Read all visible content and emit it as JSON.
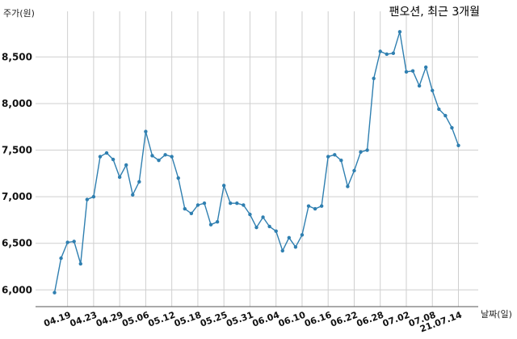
{
  "chart_data": {
    "type": "line",
    "title": "팬오션, 최근 3개월",
    "ylabel": "주가(원)",
    "xlabel": "날짜(일)",
    "ylim": [
      5820,
      8990
    ],
    "yticks": [
      6000,
      6500,
      7000,
      7500,
      8000,
      8500
    ],
    "ytick_labels": [
      "6,000",
      "6,500",
      "7,000",
      "7,500",
      "8,000",
      "8,500"
    ],
    "xticks": [
      "04.19",
      "04.23",
      "04.29",
      "05.06",
      "05.12",
      "05.18",
      "05.25",
      "05.31",
      "06.04",
      "06.10",
      "06.16",
      "06.22",
      "06.28",
      "07.02",
      "07.08",
      "21.07.14"
    ],
    "xtick_index": [
      2,
      6,
      10,
      14,
      18,
      22,
      26,
      30,
      34,
      38,
      42,
      46,
      50,
      54,
      58,
      62
    ],
    "grid": true,
    "series": [
      {
        "values": [
          5970,
          6340,
          6510,
          6520,
          6280,
          6970,
          7000,
          7430,
          7470,
          7400,
          7210,
          7340,
          7020,
          7160,
          7700,
          7440,
          7390,
          7450,
          7430,
          7200,
          6870,
          6820,
          6910,
          6930,
          6700,
          6730,
          7120,
          6930,
          6930,
          6910,
          6810,
          6670,
          6780,
          6680,
          6630,
          6420,
          6560,
          6460,
          6590,
          6900,
          6870,
          6900,
          7430,
          7450,
          7390,
          7110,
          7280,
          7480,
          7500,
          8270,
          8560,
          8530,
          8540,
          8770,
          8340,
          8350,
          8190,
          8390,
          8140,
          7940,
          7870,
          7740,
          7550
        ],
        "color": "#2f7fb0"
      }
    ]
  }
}
